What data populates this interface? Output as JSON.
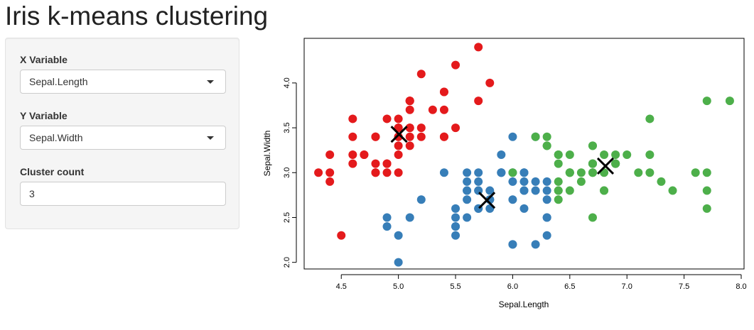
{
  "page": {
    "title": "Iris k-means clustering"
  },
  "controls": {
    "x_variable": {
      "label": "X Variable",
      "value": "Sepal.Length"
    },
    "y_variable": {
      "label": "Y Variable",
      "value": "Sepal.Width"
    },
    "cluster_count": {
      "label": "Cluster count",
      "value": "3"
    }
  },
  "chart_data": {
    "type": "scatter",
    "title": "",
    "xlabel": "Sepal.Length",
    "ylabel": "Sepal.Width",
    "xlim": [
      4.2,
      8.0
    ],
    "ylim": [
      1.95,
      4.45
    ],
    "xticks": [
      4.5,
      5.0,
      5.5,
      6.0,
      6.5,
      7.0,
      7.5,
      8.0
    ],
    "xtick_labels": [
      "4.5",
      "5.0",
      "5.5",
      "6.0",
      "6.5",
      "7.0",
      "7.5",
      "8.0"
    ],
    "yticks": [
      2.0,
      2.5,
      3.0,
      3.5,
      4.0
    ],
    "ytick_labels": [
      "2.0",
      "2.5",
      "3.0",
      "3.5",
      "4.0"
    ],
    "colors": {
      "cluster1": "#e41a1c",
      "cluster2": "#377eb8",
      "cluster3": "#4daf4a",
      "center": "#000000"
    },
    "series": [
      {
        "name": "cluster1",
        "color": "#e41a1c",
        "points": [
          [
            5.1,
            3.5
          ],
          [
            4.9,
            3.0
          ],
          [
            4.7,
            3.2
          ],
          [
            4.6,
            3.1
          ],
          [
            5.0,
            3.6
          ],
          [
            5.4,
            3.9
          ],
          [
            4.6,
            3.4
          ],
          [
            5.0,
            3.4
          ],
          [
            4.4,
            2.9
          ],
          [
            4.9,
            3.1
          ],
          [
            5.4,
            3.7
          ],
          [
            4.8,
            3.4
          ],
          [
            4.8,
            3.0
          ],
          [
            4.3,
            3.0
          ],
          [
            5.8,
            4.0
          ],
          [
            5.7,
            4.4
          ],
          [
            5.4,
            3.9
          ],
          [
            5.1,
            3.5
          ],
          [
            5.7,
            3.8
          ],
          [
            5.1,
            3.8
          ],
          [
            5.4,
            3.4
          ],
          [
            5.1,
            3.7
          ],
          [
            4.6,
            3.6
          ],
          [
            5.1,
            3.3
          ],
          [
            4.8,
            3.4
          ],
          [
            5.0,
            3.0
          ],
          [
            5.0,
            3.4
          ],
          [
            5.2,
            3.5
          ],
          [
            5.2,
            3.4
          ],
          [
            4.7,
            3.2
          ],
          [
            4.8,
            3.1
          ],
          [
            5.4,
            3.4
          ],
          [
            5.2,
            4.1
          ],
          [
            5.5,
            4.2
          ],
          [
            4.9,
            3.1
          ],
          [
            5.0,
            3.2
          ],
          [
            5.5,
            3.5
          ],
          [
            4.9,
            3.6
          ],
          [
            4.4,
            3.0
          ],
          [
            5.1,
            3.4
          ],
          [
            5.0,
            3.5
          ],
          [
            4.5,
            2.3
          ],
          [
            4.4,
            3.2
          ],
          [
            5.0,
            3.5
          ],
          [
            5.1,
            3.8
          ],
          [
            4.8,
            3.0
          ],
          [
            5.1,
            3.8
          ],
          [
            4.6,
            3.2
          ],
          [
            5.3,
            3.7
          ],
          [
            5.0,
            3.3
          ]
        ]
      },
      {
        "name": "cluster2",
        "color": "#377eb8",
        "points": [
          [
            5.5,
            2.3
          ],
          [
            5.7,
            2.8
          ],
          [
            4.9,
            2.4
          ],
          [
            5.2,
            2.7
          ],
          [
            5.0,
            2.0
          ],
          [
            5.9,
            3.0
          ],
          [
            6.0,
            2.2
          ],
          [
            5.6,
            2.9
          ],
          [
            5.8,
            2.7
          ],
          [
            6.2,
            2.2
          ],
          [
            5.6,
            2.5
          ],
          [
            5.9,
            3.2
          ],
          [
            6.1,
            2.8
          ],
          [
            6.3,
            2.5
          ],
          [
            6.1,
            2.8
          ],
          [
            5.7,
            2.6
          ],
          [
            6.0,
            2.9
          ],
          [
            5.7,
            2.6
          ],
          [
            5.5,
            2.4
          ],
          [
            5.5,
            2.4
          ],
          [
            5.8,
            2.7
          ],
          [
            6.0,
            2.7
          ],
          [
            5.4,
            3.0
          ],
          [
            6.0,
            3.4
          ],
          [
            6.3,
            2.3
          ],
          [
            5.6,
            3.0
          ],
          [
            5.5,
            2.5
          ],
          [
            5.5,
            2.6
          ],
          [
            6.1,
            3.0
          ],
          [
            5.8,
            2.6
          ],
          [
            5.0,
            2.3
          ],
          [
            5.6,
            2.7
          ],
          [
            5.7,
            3.0
          ],
          [
            5.7,
            2.9
          ],
          [
            6.2,
            2.9
          ],
          [
            5.1,
            2.5
          ],
          [
            5.7,
            2.8
          ],
          [
            4.9,
            2.5
          ],
          [
            5.8,
            2.8
          ],
          [
            6.3,
            2.7
          ],
          [
            6.0,
            3.0
          ],
          [
            6.1,
            2.6
          ],
          [
            6.3,
            2.8
          ],
          [
            6.1,
            3.0
          ],
          [
            5.8,
            2.7
          ],
          [
            6.2,
            2.8
          ],
          [
            6.3,
            2.5
          ],
          [
            5.9,
            3.0
          ],
          [
            5.6,
            2.8
          ],
          [
            6.0,
            2.2
          ],
          [
            5.6,
            2.8
          ],
          [
            6.1,
            2.9
          ],
          [
            6.2,
            3.4
          ],
          [
            5.9,
            3.0
          ],
          [
            6.3,
            2.9
          ]
        ]
      },
      {
        "name": "cluster3",
        "color": "#4daf4a",
        "points": [
          [
            7.0,
            3.2
          ],
          [
            6.4,
            3.2
          ],
          [
            6.9,
            3.1
          ],
          [
            6.5,
            2.8
          ],
          [
            6.3,
            3.3
          ],
          [
            6.6,
            2.9
          ],
          [
            6.7,
            3.1
          ],
          [
            6.4,
            2.9
          ],
          [
            6.6,
            3.0
          ],
          [
            6.8,
            2.8
          ],
          [
            6.7,
            3.0
          ],
          [
            6.7,
            3.1
          ],
          [
            6.3,
            3.3
          ],
          [
            7.1,
            3.0
          ],
          [
            6.5,
            3.0
          ],
          [
            7.6,
            3.0
          ],
          [
            7.3,
            2.9
          ],
          [
            6.7,
            2.5
          ],
          [
            7.2,
            3.6
          ],
          [
            6.5,
            3.2
          ],
          [
            6.4,
            2.7
          ],
          [
            6.8,
            3.0
          ],
          [
            6.4,
            3.2
          ],
          [
            6.5,
            3.0
          ],
          [
            7.7,
            3.8
          ],
          [
            7.7,
            2.6
          ],
          [
            6.9,
            3.2
          ],
          [
            7.7,
            2.8
          ],
          [
            6.7,
            3.3
          ],
          [
            7.2,
            3.2
          ],
          [
            6.4,
            2.8
          ],
          [
            7.2,
            3.0
          ],
          [
            7.4,
            2.8
          ],
          [
            7.9,
            3.8
          ],
          [
            6.4,
            2.8
          ],
          [
            7.7,
            3.0
          ],
          [
            6.4,
            3.1
          ],
          [
            6.9,
            3.1
          ],
          [
            6.7,
            3.1
          ],
          [
            6.9,
            3.1
          ],
          [
            6.8,
            3.2
          ],
          [
            6.7,
            3.3
          ],
          [
            6.7,
            3.0
          ],
          [
            6.5,
            3.0
          ],
          [
            6.2,
            3.4
          ],
          [
            6.3,
            3.4
          ],
          [
            6.0,
            3.0
          ],
          [
            6.8,
            2.8
          ]
        ]
      }
    ],
    "centers": [
      [
        5.006,
        3.428
      ],
      [
        5.774,
        2.692
      ],
      [
        6.812,
        3.074
      ]
    ]
  }
}
